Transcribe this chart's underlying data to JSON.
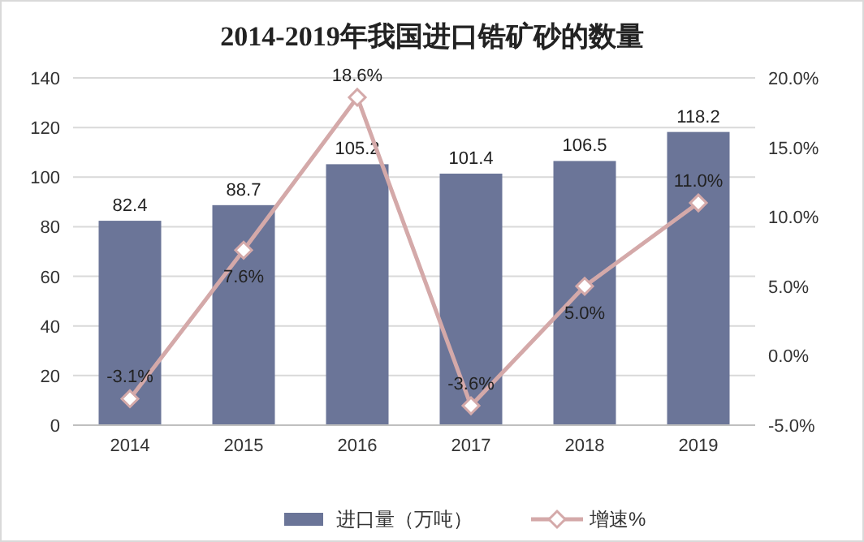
{
  "chart_data": {
    "type": "bar",
    "title": "2014-2019年我国进口锆矿砂的数量",
    "categories": [
      "2014",
      "2015",
      "2016",
      "2017",
      "2018",
      "2019"
    ],
    "series": [
      {
        "name": "进口量（万吨）",
        "color": "#6b7598",
        "values": [
          82.4,
          88.7,
          105.2,
          101.4,
          106.5,
          118.2
        ],
        "value_labels": [
          "82.4",
          "88.7",
          "105.2",
          "101.4",
          "106.5",
          "118.2"
        ]
      },
      {
        "name": "增速%",
        "type": "line",
        "axis": "y2",
        "color": "#d4a9a9",
        "marker": "diamond",
        "values": [
          -3.1,
          7.6,
          18.6,
          -3.6,
          5.0,
          11.0
        ],
        "value_labels": [
          "-3.1%",
          "7.6%",
          "18.6%",
          "-3.6%",
          "5.0%",
          "11.0%"
        ]
      }
    ],
    "ylim": [
      0,
      140
    ],
    "yticks": [
      0,
      20,
      40,
      60,
      80,
      100,
      120,
      140
    ],
    "y2lim": [
      -5,
      20
    ],
    "y2ticks": [
      {
        "value": -5,
        "label": "-5.0%"
      },
      {
        "value": 0,
        "label": "0.0%"
      },
      {
        "value": 5,
        "label": "5.0%"
      },
      {
        "value": 10,
        "label": "10.0%"
      },
      {
        "value": 15,
        "label": "15.0%"
      },
      {
        "value": 20,
        "label": "20.0%"
      }
    ],
    "grid": "y",
    "legend": "bottom"
  }
}
